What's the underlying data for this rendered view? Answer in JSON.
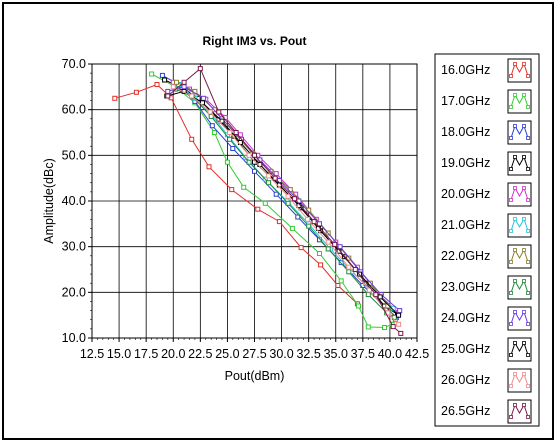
{
  "chart_data": {
    "type": "line",
    "title": "Right IM3 vs. Pout",
    "xlabel": "Pout(dBm)",
    "ylabel": "Amplitude(dBc)",
    "xlim": [
      12.5,
      42.5
    ],
    "ylim": [
      10.0,
      70.0
    ],
    "x_ticks": [
      "12.5",
      "15.0",
      "17.5",
      "20.0",
      "22.5",
      "25.0",
      "27.5",
      "30.0",
      "32.5",
      "35.0",
      "37.5",
      "40.0",
      "42.5"
    ],
    "y_ticks": [
      "10.0",
      "20.0",
      "30.0",
      "40.0",
      "50.0",
      "60.0",
      "70.0"
    ],
    "grid": true,
    "legend_position": "right",
    "series": [
      {
        "name": "16.0GHz",
        "color": "#e0302a",
        "points": [
          [
            14.6,
            62.5
          ],
          [
            16.6,
            63.8
          ],
          [
            18.5,
            65.5
          ],
          [
            19.8,
            62.6
          ],
          [
            21.7,
            53.5
          ],
          [
            23.3,
            47.5
          ],
          [
            25.4,
            42.5
          ],
          [
            27.8,
            38.2
          ],
          [
            29.8,
            35.5
          ],
          [
            31.8,
            29.8
          ],
          [
            33.6,
            26.0
          ],
          [
            35.2,
            21.5
          ],
          [
            37.0,
            17.5
          ]
        ]
      },
      {
        "name": "17.0GHz",
        "color": "#33cc33",
        "points": [
          [
            18.0,
            67.8
          ],
          [
            20.2,
            65.0
          ],
          [
            22.0,
            61.5
          ],
          [
            23.8,
            55.0
          ],
          [
            25.0,
            48.5
          ],
          [
            26.5,
            43.0
          ],
          [
            28.5,
            39.5
          ],
          [
            31.0,
            34.0
          ],
          [
            33.5,
            28.5
          ],
          [
            35.5,
            22.5
          ],
          [
            37.1,
            17.0
          ],
          [
            38.0,
            12.4
          ],
          [
            39.5,
            12.3
          ],
          [
            40.2,
            13.0
          ]
        ]
      },
      {
        "name": "18.0GHz",
        "color": "#2a3fd6",
        "points": [
          [
            19.0,
            67.5
          ],
          [
            20.5,
            65.5
          ],
          [
            22.0,
            61.8
          ],
          [
            23.6,
            56.5
          ],
          [
            25.5,
            51.5
          ],
          [
            27.5,
            46.5
          ],
          [
            29.5,
            41.5
          ],
          [
            31.5,
            36.5
          ],
          [
            33.5,
            31.5
          ],
          [
            35.5,
            26.5
          ],
          [
            37.5,
            21.5
          ],
          [
            39.5,
            17.0
          ],
          [
            40.6,
            14.5
          ]
        ]
      },
      {
        "name": "19.0GHz",
        "color": "#000000",
        "points": [
          [
            19.2,
            66.5
          ],
          [
            20.8,
            64.8
          ],
          [
            22.3,
            62.5
          ],
          [
            24.2,
            57.8
          ],
          [
            25.6,
            54.2
          ],
          [
            27.5,
            48.5
          ],
          [
            29.8,
            43.5
          ],
          [
            31.8,
            38.5
          ],
          [
            33.6,
            33.5
          ],
          [
            35.8,
            27.8
          ],
          [
            37.8,
            22.0
          ],
          [
            39.5,
            17.0
          ],
          [
            40.7,
            15.2
          ]
        ]
      },
      {
        "name": "20.0GHz",
        "color": "#cc33cc",
        "points": [
          [
            20.0,
            66.0
          ],
          [
            21.5,
            64.5
          ],
          [
            23.0,
            62.3
          ],
          [
            24.8,
            58.3
          ],
          [
            26.2,
            54.5
          ],
          [
            27.8,
            50.0
          ],
          [
            29.5,
            46.0
          ],
          [
            31.3,
            41.5
          ],
          [
            33.2,
            36.0
          ],
          [
            35.0,
            31.0
          ],
          [
            37.0,
            25.5
          ],
          [
            39.0,
            19.5
          ],
          [
            40.8,
            15.5
          ]
        ]
      },
      {
        "name": "21.0GHz",
        "color": "#26c6da",
        "points": [
          [
            20.5,
            65.5
          ],
          [
            22.0,
            62.5
          ],
          [
            23.5,
            59.0
          ],
          [
            25.0,
            54.5
          ],
          [
            26.7,
            49.5
          ],
          [
            28.5,
            44.8
          ],
          [
            30.5,
            40.0
          ],
          [
            32.5,
            35.0
          ],
          [
            34.5,
            29.5
          ],
          [
            36.5,
            24.5
          ],
          [
            38.5,
            20.0
          ],
          [
            40.3,
            16.5
          ]
        ]
      },
      {
        "name": "22.0GHz",
        "color": "#8b7d2a",
        "points": [
          [
            20.3,
            66.0
          ],
          [
            22.0,
            64.0
          ],
          [
            23.8,
            60.0
          ],
          [
            25.6,
            55.0
          ],
          [
            27.3,
            50.5
          ],
          [
            29.0,
            46.5
          ],
          [
            30.8,
            42.5
          ],
          [
            32.5,
            38.0
          ],
          [
            34.3,
            33.0
          ],
          [
            36.2,
            27.5
          ],
          [
            38.2,
            22.0
          ],
          [
            39.8,
            17.0
          ],
          [
            40.5,
            14.0
          ]
        ]
      },
      {
        "name": "23.0GHz",
        "color": "#1e8a3a",
        "points": [
          [
            20.2,
            64.5
          ],
          [
            21.8,
            62.8
          ],
          [
            23.5,
            58.5
          ],
          [
            25.2,
            53.5
          ],
          [
            27.0,
            48.5
          ],
          [
            28.8,
            44.0
          ],
          [
            30.6,
            39.5
          ],
          [
            32.5,
            34.5
          ],
          [
            34.3,
            29.5
          ],
          [
            36.2,
            24.5
          ],
          [
            38.0,
            19.5
          ],
          [
            39.7,
            15.5
          ],
          [
            40.4,
            14.5
          ]
        ]
      },
      {
        "name": "24.0GHz",
        "color": "#6a3adf",
        "points": [
          [
            19.5,
            64.0
          ],
          [
            21.0,
            65.0
          ],
          [
            22.8,
            62.5
          ],
          [
            24.5,
            58.0
          ],
          [
            26.3,
            53.5
          ],
          [
            28.0,
            49.0
          ],
          [
            29.8,
            44.5
          ],
          [
            31.6,
            40.0
          ],
          [
            33.5,
            35.0
          ],
          [
            35.4,
            30.0
          ],
          [
            37.3,
            24.5
          ],
          [
            39.2,
            19.5
          ],
          [
            40.9,
            16.0
          ]
        ]
      },
      {
        "name": "25.0GHz",
        "color": "#000000",
        "points": [
          [
            19.4,
            63.0
          ],
          [
            21.0,
            64.0
          ],
          [
            22.7,
            61.5
          ],
          [
            24.5,
            57.5
          ],
          [
            26.2,
            52.8
          ],
          [
            28.0,
            48.0
          ],
          [
            29.8,
            43.5
          ],
          [
            31.6,
            39.0
          ],
          [
            33.4,
            34.0
          ],
          [
            35.3,
            29.0
          ],
          [
            37.2,
            24.0
          ],
          [
            39.1,
            19.0
          ],
          [
            40.8,
            15.0
          ]
        ]
      },
      {
        "name": "26.0GHz",
        "color": "#f08c8c",
        "points": [
          [
            20.0,
            65.0
          ],
          [
            21.7,
            63.0
          ],
          [
            23.4,
            59.5
          ],
          [
            25.2,
            55.0
          ],
          [
            27.0,
            50.0
          ],
          [
            28.8,
            45.5
          ],
          [
            30.6,
            41.0
          ],
          [
            32.4,
            36.0
          ],
          [
            34.3,
            31.0
          ],
          [
            36.2,
            25.5
          ],
          [
            38.1,
            20.5
          ],
          [
            39.8,
            15.5
          ],
          [
            40.8,
            13.0
          ]
        ]
      },
      {
        "name": "26.5GHz",
        "color": "#7a1a4a",
        "points": [
          [
            19.5,
            63.0
          ],
          [
            21.0,
            66.0
          ],
          [
            22.5,
            69.0
          ],
          [
            24.2,
            59.5
          ],
          [
            25.8,
            55.0
          ],
          [
            27.5,
            50.0
          ],
          [
            29.4,
            45.0
          ],
          [
            31.2,
            40.5
          ],
          [
            33.0,
            35.5
          ],
          [
            34.9,
            30.5
          ],
          [
            36.8,
            25.0
          ],
          [
            38.7,
            19.5
          ],
          [
            40.3,
            12.5
          ],
          [
            41.0,
            11.0
          ]
        ]
      }
    ]
  }
}
